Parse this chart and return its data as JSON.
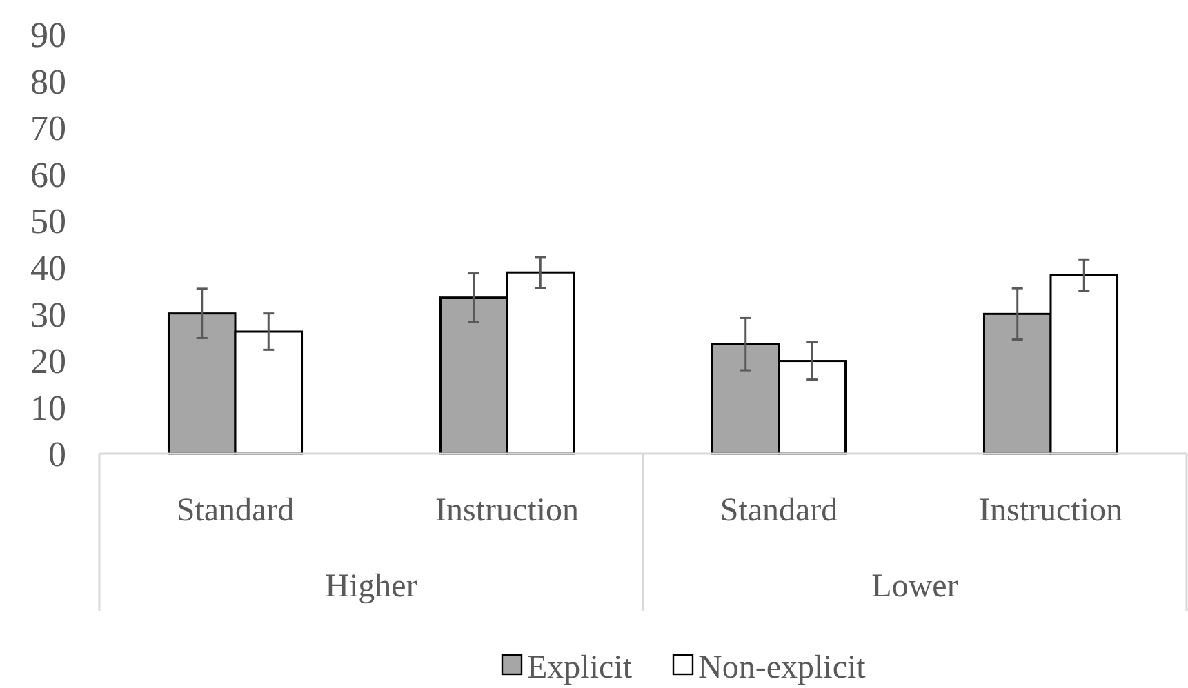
{
  "chart_data": {
    "type": "bar",
    "categories": [
      "Standard",
      "Instruction",
      "Standard",
      "Instruction"
    ],
    "series": [
      {
        "name": "Explicit",
        "color": "#a6a6a6",
        "values": [
          30.1,
          33.5,
          23.5,
          30
        ],
        "errors": [
          5.3,
          5.2,
          5.6,
          5.5
        ]
      },
      {
        "name": "Non-explicit",
        "color": "#ffffff",
        "values": [
          26.2,
          38.9,
          19.9,
          38.3
        ],
        "errors": [
          3.9,
          3.3,
          4,
          3.4
        ]
      }
    ],
    "annotations": [
      "Higher",
      "Lower"
    ],
    "ylim": [
      0,
      90
    ],
    "yticks": [
      0,
      10,
      20,
      30,
      40,
      50,
      60,
      70,
      80,
      90
    ],
    "grid": false,
    "legend": "bottom"
  }
}
